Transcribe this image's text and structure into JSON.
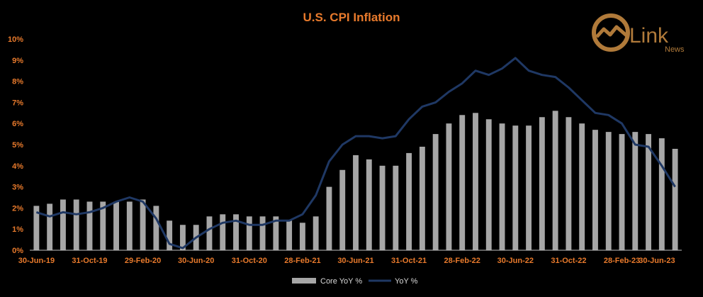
{
  "chart_data": {
    "type": "bar+line",
    "title": "U.S. CPI Inflation",
    "xlabel": "",
    "ylabel": "",
    "ylim": [
      0,
      10
    ],
    "y_ticks": [
      "0%",
      "1%",
      "2%",
      "3%",
      "4%",
      "5%",
      "6%",
      "7%",
      "8%",
      "9%",
      "10%"
    ],
    "x_tick_labels": [
      "30-Jun-19",
      "31-Oct-19",
      "29-Feb-20",
      "30-Jun-20",
      "31-Oct-20",
      "28-Feb-21",
      "30-Jun-21",
      "31-Oct-21",
      "28-Feb-22",
      "30-Jun-22",
      "31-Oct-22",
      "28-Feb-23",
      "30-Jun-23"
    ],
    "categories": [
      "Jun-19",
      "Jul-19",
      "Aug-19",
      "Sep-19",
      "Oct-19",
      "Nov-19",
      "Dec-19",
      "Jan-20",
      "Feb-20",
      "Mar-20",
      "Apr-20",
      "May-20",
      "Jun-20",
      "Jul-20",
      "Aug-20",
      "Sep-20",
      "Oct-20",
      "Nov-20",
      "Dec-20",
      "Jan-21",
      "Feb-21",
      "Mar-21",
      "Apr-21",
      "May-21",
      "Jun-21",
      "Jul-21",
      "Aug-21",
      "Sep-21",
      "Oct-21",
      "Nov-21",
      "Dec-21",
      "Jan-22",
      "Feb-22",
      "Mar-22",
      "Apr-22",
      "May-22",
      "Jun-22",
      "Jul-22",
      "Aug-22",
      "Sep-22",
      "Oct-22",
      "Nov-22",
      "Dec-22",
      "Jan-23",
      "Feb-23",
      "Mar-23",
      "Apr-23",
      "May-23",
      "Jun-23"
    ],
    "series": [
      {
        "name": "Core YoY %",
        "type": "bar",
        "color": "#a6a6a6",
        "values": [
          2.1,
          2.2,
          2.4,
          2.4,
          2.3,
          2.3,
          2.3,
          2.3,
          2.4,
          2.1,
          1.4,
          1.2,
          1.2,
          1.6,
          1.7,
          1.7,
          1.6,
          1.6,
          1.6,
          1.4,
          1.3,
          1.6,
          3.0,
          3.8,
          4.5,
          4.3,
          4.0,
          4.0,
          4.6,
          4.9,
          5.5,
          6.0,
          6.4,
          6.5,
          6.2,
          6.0,
          5.9,
          5.9,
          6.3,
          6.6,
          6.3,
          6.0,
          5.7,
          5.6,
          5.5,
          5.6,
          5.5,
          5.3,
          4.8
        ]
      },
      {
        "name": "YoY %",
        "type": "line",
        "color": "#1f3864",
        "values": [
          1.8,
          1.6,
          1.8,
          1.7,
          1.8,
          2.0,
          2.3,
          2.5,
          2.3,
          1.5,
          0.3,
          0.1,
          0.6,
          1.0,
          1.3,
          1.4,
          1.2,
          1.2,
          1.4,
          1.4,
          1.7,
          2.6,
          4.2,
          5.0,
          5.4,
          5.4,
          5.3,
          5.4,
          6.2,
          6.8,
          7.0,
          7.5,
          7.9,
          8.5,
          8.3,
          8.6,
          9.1,
          8.5,
          8.3,
          8.2,
          7.7,
          7.1,
          6.5,
          6.4,
          6.0,
          5.0,
          4.9,
          4.0,
          3.0
        ]
      }
    ],
    "legend_position": "bottom",
    "grid": false
  },
  "logo": {
    "name": "Link",
    "tagline": "News",
    "color": "#b07a3a"
  }
}
